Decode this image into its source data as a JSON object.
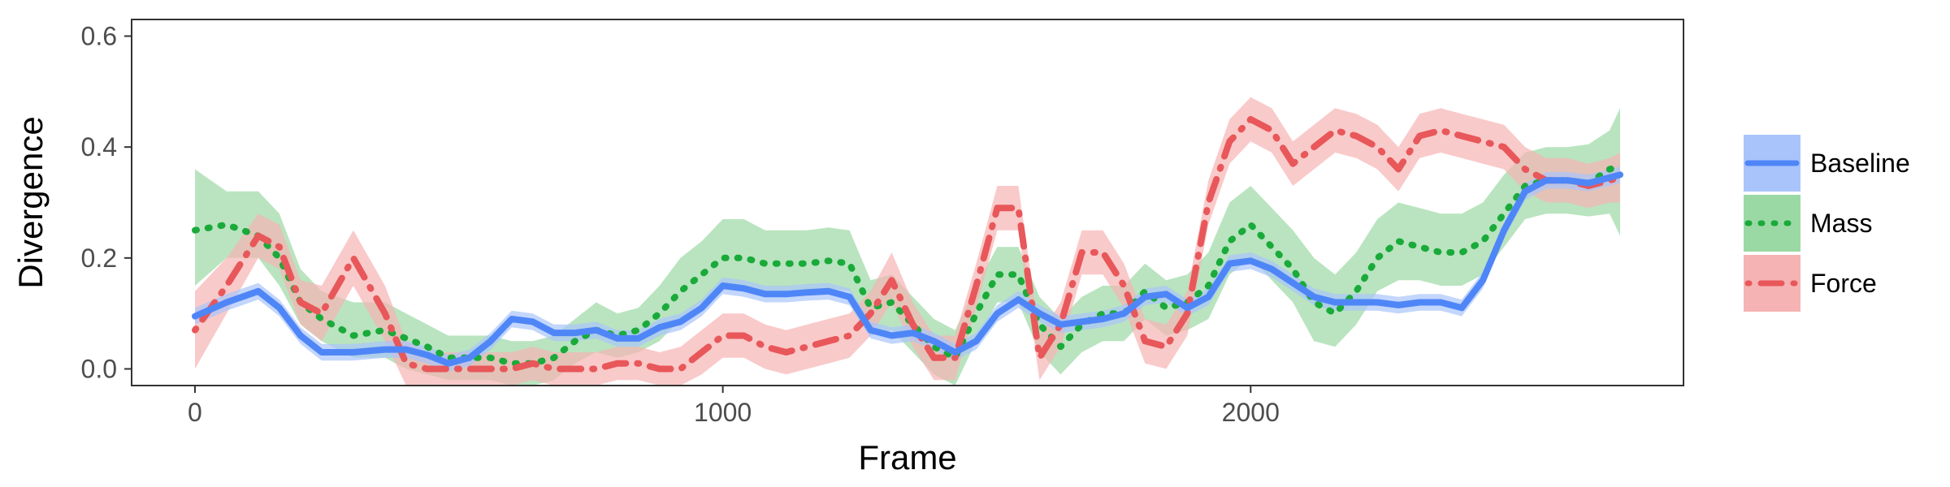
{
  "chart_data": {
    "type": "line",
    "xlabel": "Frame",
    "ylabel": "Divergence",
    "xlim": [
      -120,
      2820
    ],
    "ylim": [
      -0.03,
      0.63
    ],
    "x_ticks": [
      0,
      1000,
      2000
    ],
    "x_tick_labels": [
      "0",
      "1000",
      "2000"
    ],
    "y_ticks": [
      0.0,
      0.2,
      0.4,
      0.6
    ],
    "y_tick_labels": [
      "0.0",
      "0.2",
      "0.4",
      "0.6"
    ],
    "grid": false,
    "legend_position": "right",
    "series": [
      {
        "name": "Baseline",
        "color": "#4f86f7",
        "fill_color": "#a9c4fb",
        "dash": "solid",
        "ribbon": 0.015,
        "x": [
          0,
          60,
          120,
          160,
          200,
          240,
          300,
          360,
          400,
          440,
          480,
          520,
          560,
          600,
          640,
          680,
          720,
          760,
          800,
          840,
          880,
          920,
          960,
          1000,
          1040,
          1080,
          1120,
          1160,
          1200,
          1240,
          1280,
          1320,
          1360,
          1400,
          1440,
          1480,
          1520,
          1560,
          1600,
          1640,
          1680,
          1720,
          1760,
          1800,
          1840,
          1880,
          1920,
          1960,
          2000,
          2040,
          2080,
          2120,
          2160,
          2200,
          2240,
          2280,
          2320,
          2360,
          2400,
          2440,
          2480,
          2520,
          2560,
          2600,
          2640,
          2680,
          2700
        ],
        "y": [
          0.095,
          0.12,
          0.14,
          0.11,
          0.06,
          0.03,
          0.03,
          0.035,
          0.035,
          0.025,
          0.01,
          0.02,
          0.05,
          0.09,
          0.085,
          0.065,
          0.065,
          0.07,
          0.055,
          0.055,
          0.075,
          0.085,
          0.11,
          0.15,
          0.145,
          0.135,
          0.135,
          0.138,
          0.14,
          0.13,
          0.07,
          0.06,
          0.065,
          0.05,
          0.03,
          0.05,
          0.1,
          0.125,
          0.1,
          0.08,
          0.085,
          0.09,
          0.1,
          0.13,
          0.135,
          0.11,
          0.13,
          0.19,
          0.195,
          0.18,
          0.155,
          0.13,
          0.12,
          0.12,
          0.12,
          0.115,
          0.12,
          0.12,
          0.11,
          0.16,
          0.25,
          0.32,
          0.34,
          0.34,
          0.335,
          0.345,
          0.35
        ]
      },
      {
        "name": "Mass",
        "color": "#1aaa3a",
        "fill_color": "#9bd9a4",
        "dash": "dotted",
        "x": [
          0,
          60,
          120,
          160,
          200,
          240,
          300,
          360,
          400,
          440,
          480,
          520,
          560,
          600,
          640,
          680,
          720,
          760,
          800,
          840,
          880,
          920,
          960,
          1000,
          1040,
          1080,
          1120,
          1160,
          1200,
          1240,
          1280,
          1320,
          1360,
          1400,
          1440,
          1480,
          1520,
          1560,
          1600,
          1640,
          1680,
          1720,
          1760,
          1800,
          1840,
          1880,
          1920,
          1960,
          2000,
          2040,
          2080,
          2120,
          2160,
          2200,
          2240,
          2280,
          2320,
          2360,
          2400,
          2440,
          2480,
          2520,
          2560,
          2600,
          2640,
          2680,
          2700
        ],
        "y": [
          0.25,
          0.26,
          0.24,
          0.2,
          0.12,
          0.09,
          0.06,
          0.07,
          0.055,
          0.04,
          0.02,
          0.02,
          0.02,
          0.01,
          0.01,
          0.02,
          0.05,
          0.07,
          0.06,
          0.07,
          0.1,
          0.14,
          0.17,
          0.2,
          0.2,
          0.19,
          0.19,
          0.19,
          0.195,
          0.19,
          0.11,
          0.12,
          0.08,
          0.04,
          0.02,
          0.1,
          0.17,
          0.17,
          0.08,
          0.04,
          0.08,
          0.1,
          0.1,
          0.14,
          0.11,
          0.12,
          0.15,
          0.23,
          0.26,
          0.22,
          0.18,
          0.12,
          0.1,
          0.14,
          0.2,
          0.23,
          0.22,
          0.21,
          0.21,
          0.23,
          0.28,
          0.33,
          0.34,
          0.34,
          0.335,
          0.36,
          0.365
        ],
        "lower": [
          0.15,
          0.2,
          0.2,
          0.15,
          0.08,
          0.05,
          0.02,
          0.02,
          0.0,
          -0.01,
          -0.02,
          -0.02,
          -0.02,
          -0.03,
          -0.03,
          -0.02,
          0.01,
          0.03,
          0.02,
          0.03,
          0.05,
          0.09,
          0.12,
          0.15,
          0.15,
          0.14,
          0.14,
          0.14,
          0.145,
          0.14,
          0.06,
          0.07,
          0.03,
          -0.01,
          -0.03,
          0.05,
          0.12,
          0.12,
          0.03,
          -0.01,
          0.03,
          0.05,
          0.05,
          0.09,
          0.06,
          0.07,
          0.09,
          0.17,
          0.2,
          0.16,
          0.12,
          0.05,
          0.04,
          0.08,
          0.14,
          0.16,
          0.16,
          0.15,
          0.15,
          0.17,
          0.22,
          0.27,
          0.28,
          0.28,
          0.275,
          0.28,
          0.24
        ],
        "upper": [
          0.36,
          0.32,
          0.32,
          0.28,
          0.18,
          0.14,
          0.12,
          0.12,
          0.1,
          0.08,
          0.06,
          0.06,
          0.06,
          0.05,
          0.05,
          0.06,
          0.09,
          0.12,
          0.1,
          0.11,
          0.15,
          0.2,
          0.23,
          0.27,
          0.27,
          0.25,
          0.25,
          0.25,
          0.255,
          0.25,
          0.16,
          0.17,
          0.13,
          0.09,
          0.07,
          0.15,
          0.22,
          0.22,
          0.13,
          0.09,
          0.13,
          0.15,
          0.15,
          0.19,
          0.16,
          0.17,
          0.21,
          0.3,
          0.33,
          0.29,
          0.25,
          0.2,
          0.17,
          0.21,
          0.27,
          0.3,
          0.29,
          0.28,
          0.28,
          0.3,
          0.35,
          0.39,
          0.4,
          0.4,
          0.405,
          0.43,
          0.47
        ]
      },
      {
        "name": "Force",
        "color": "#e8575a",
        "fill_color": "#f6b3b3",
        "dash": "dotdash",
        "x": [
          0,
          60,
          120,
          160,
          200,
          240,
          300,
          360,
          400,
          440,
          480,
          520,
          560,
          600,
          640,
          680,
          720,
          760,
          800,
          840,
          880,
          920,
          960,
          1000,
          1040,
          1080,
          1120,
          1160,
          1200,
          1240,
          1280,
          1320,
          1360,
          1400,
          1440,
          1480,
          1520,
          1560,
          1600,
          1640,
          1680,
          1720,
          1760,
          1800,
          1840,
          1880,
          1920,
          1960,
          2000,
          2040,
          2080,
          2120,
          2160,
          2200,
          2240,
          2280,
          2320,
          2360,
          2400,
          2440,
          2480,
          2520,
          2560,
          2600,
          2640,
          2680,
          2700
        ],
        "y": [
          0.07,
          0.15,
          0.24,
          0.22,
          0.12,
          0.1,
          0.2,
          0.1,
          0.01,
          0.0,
          0.0,
          0.0,
          0.0,
          0.0,
          0.01,
          0.0,
          0.0,
          0.0,
          0.01,
          0.01,
          0.0,
          0.0,
          0.03,
          0.06,
          0.06,
          0.04,
          0.03,
          0.04,
          0.05,
          0.06,
          0.1,
          0.16,
          0.08,
          0.02,
          0.02,
          0.15,
          0.29,
          0.29,
          0.02,
          0.08,
          0.21,
          0.21,
          0.15,
          0.05,
          0.04,
          0.1,
          0.3,
          0.41,
          0.45,
          0.43,
          0.37,
          0.4,
          0.43,
          0.42,
          0.4,
          0.36,
          0.42,
          0.43,
          0.42,
          0.41,
          0.4,
          0.36,
          0.34,
          0.34,
          0.33,
          0.34,
          0.345
        ],
        "lower": [
          0.0,
          0.1,
          0.2,
          0.18,
          0.08,
          0.05,
          0.15,
          0.05,
          -0.03,
          -0.03,
          -0.03,
          -0.03,
          -0.03,
          -0.03,
          -0.02,
          -0.03,
          -0.03,
          -0.03,
          -0.02,
          -0.02,
          -0.03,
          -0.03,
          -0.01,
          0.02,
          0.02,
          0.0,
          -0.01,
          0.0,
          0.01,
          0.02,
          0.06,
          0.12,
          0.04,
          -0.02,
          -0.02,
          0.11,
          0.25,
          0.25,
          -0.02,
          0.04,
          0.17,
          0.17,
          0.11,
          0.01,
          0.0,
          0.06,
          0.26,
          0.37,
          0.41,
          0.39,
          0.33,
          0.36,
          0.39,
          0.38,
          0.36,
          0.32,
          0.38,
          0.39,
          0.38,
          0.37,
          0.36,
          0.32,
          0.3,
          0.3,
          0.29,
          0.3,
          0.3
        ],
        "upper": [
          0.14,
          0.2,
          0.28,
          0.26,
          0.16,
          0.15,
          0.25,
          0.15,
          0.05,
          0.03,
          0.03,
          0.03,
          0.03,
          0.03,
          0.04,
          0.03,
          0.03,
          0.03,
          0.04,
          0.04,
          0.03,
          0.04,
          0.07,
          0.1,
          0.1,
          0.08,
          0.07,
          0.08,
          0.09,
          0.1,
          0.14,
          0.21,
          0.12,
          0.06,
          0.06,
          0.19,
          0.33,
          0.33,
          0.06,
          0.12,
          0.25,
          0.25,
          0.19,
          0.09,
          0.08,
          0.14,
          0.34,
          0.45,
          0.49,
          0.47,
          0.41,
          0.44,
          0.47,
          0.46,
          0.44,
          0.4,
          0.46,
          0.47,
          0.46,
          0.45,
          0.44,
          0.4,
          0.38,
          0.38,
          0.37,
          0.38,
          0.39
        ]
      }
    ]
  }
}
